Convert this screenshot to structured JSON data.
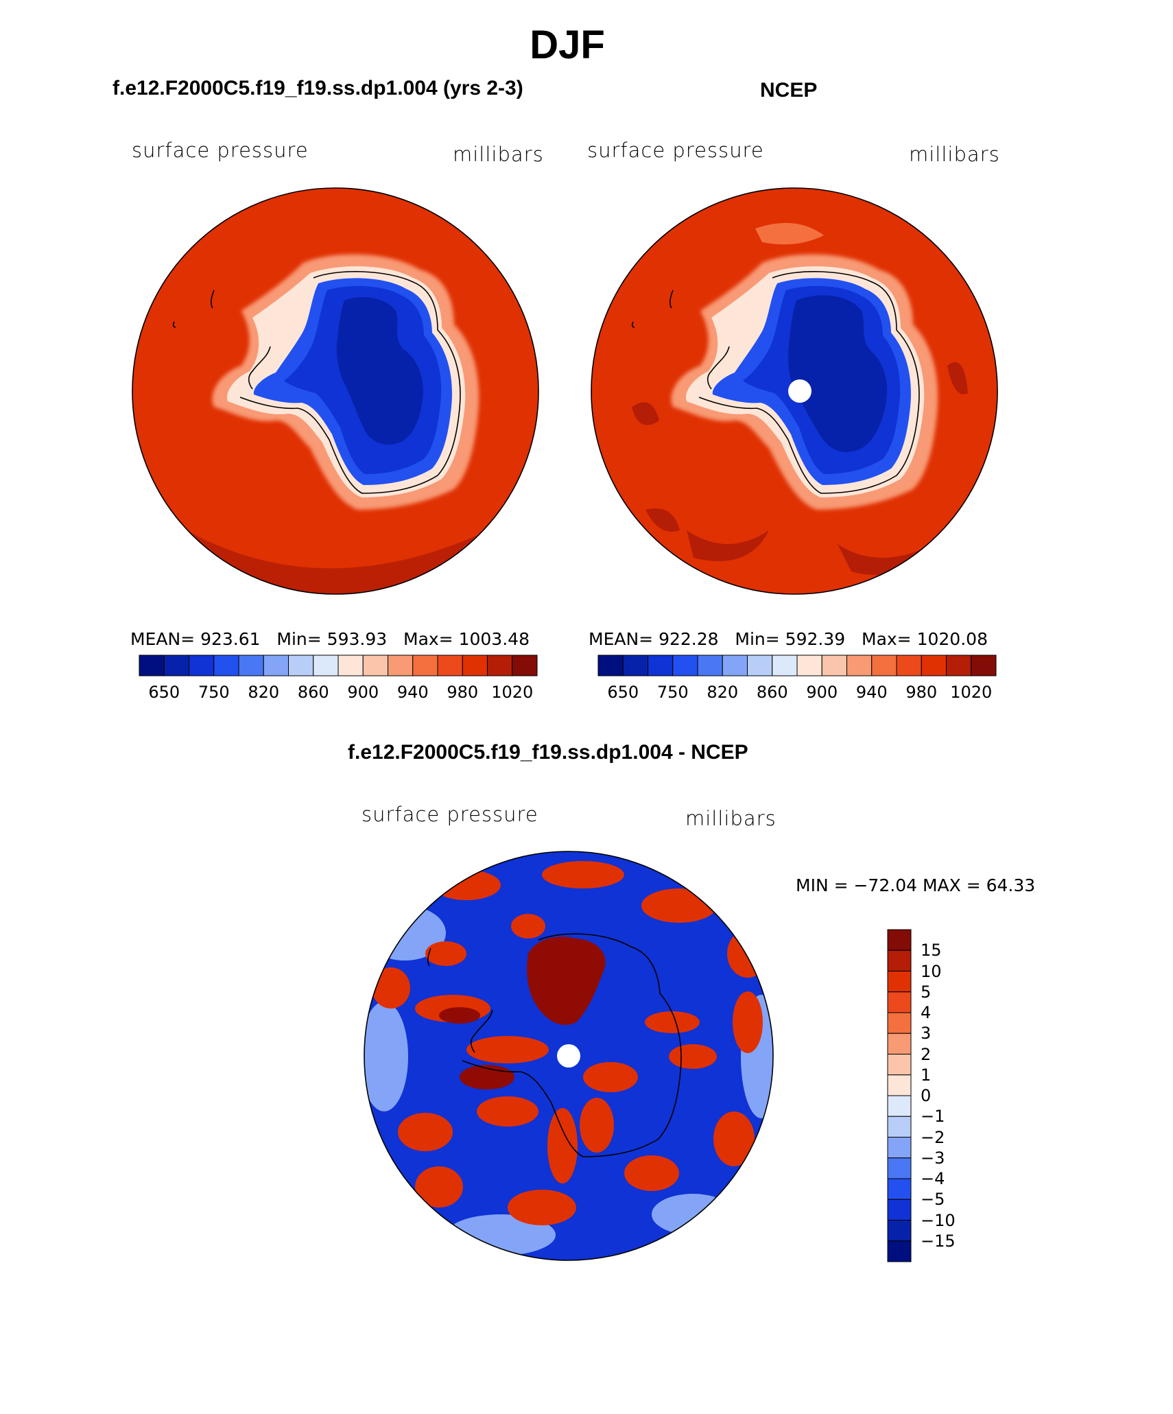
{
  "title": "DJF",
  "panels": [
    {
      "id": "model",
      "case_title": "f.e12.F2000C5.f19_f19.ss.dp1.004 (yrs 2-3)",
      "variable": "surface pressure",
      "units": "millibars",
      "stats": {
        "mean_label": "MEAN=",
        "mean": "923.61",
        "min_label": "Min=",
        "min": "593.93",
        "max_label": "Max=",
        "max": "1003.48"
      }
    },
    {
      "id": "obs",
      "case_title": "NCEP",
      "variable": "surface pressure",
      "units": "millibars",
      "stats": {
        "mean_label": "MEAN=",
        "mean": "922.28",
        "min_label": "Min=",
        "min": "592.39",
        "max_label": "Max=",
        "max": "1020.08"
      }
    },
    {
      "id": "diff",
      "case_title": "f.e12.F2000C5.f19_f19.ss.dp1.004 - NCEP",
      "variable": "surface pressure",
      "units": "millibars",
      "minmax": "MIN = −72.04 MAX =  64.33"
    }
  ],
  "colorbar_abs": {
    "colors": [
      "#000f80",
      "#0722aa",
      "#0f33d4",
      "#2251f0",
      "#4a78f4",
      "#84a5f7",
      "#b8cef9",
      "#dce9fb",
      "#fde6d8",
      "#fbc5ab",
      "#f89a74",
      "#f4703f",
      "#ec4a1d",
      "#e03103",
      "#b41d06",
      "#830c06"
    ],
    "tick_labels": [
      "650",
      "750",
      "820",
      "860",
      "900",
      "940",
      "980",
      "1020"
    ]
  },
  "colorbar_diff": {
    "colors": [
      "#830c06",
      "#b41d06",
      "#e03103",
      "#ec4a1d",
      "#f4703f",
      "#f89a74",
      "#fbc5ab",
      "#fde6d8",
      "#dce9fb",
      "#b8cef9",
      "#84a5f7",
      "#4a78f4",
      "#2251f0",
      "#0f33d4",
      "#0722aa",
      "#000f80"
    ],
    "tick_labels": [
      "15",
      "10",
      "5",
      "4",
      "3",
      "2",
      "1",
      "0",
      "−1",
      "−2",
      "−3",
      "−4",
      "−5",
      "−10",
      "−15"
    ]
  },
  "map_colors": {
    "ocean_model": "#e03103",
    "ocean_obs": "#e03103",
    "ocean_dark": "#b41d06",
    "land_deep": "#0722aa",
    "land_mid": "#0f33d4",
    "land_light": "#2251f0",
    "coast_white": "#fde6d8",
    "coast_salmon": "#f89a74",
    "diff_blue": "#0f33d4",
    "diff_red": "#e03103",
    "diff_darkred": "#900b04",
    "diff_lightblue": "#84a5f7",
    "pole_hole": "#ffffff"
  }
}
